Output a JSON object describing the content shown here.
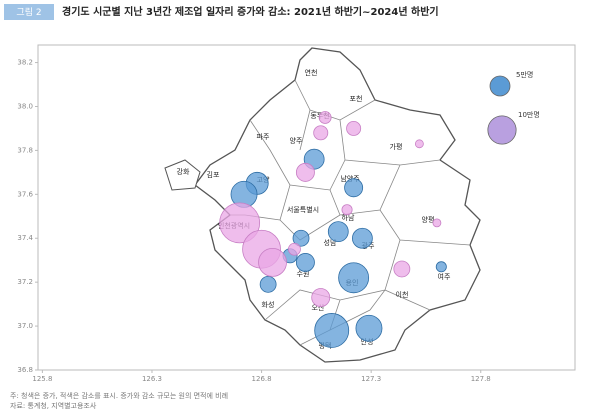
{
  "header": {
    "figure_label": "그림 2",
    "title": "경기도 시군별 지난 3년간 제조업 일자리 증가와 감소: 2021년 하반기~2024년 하반기"
  },
  "chart_data": {
    "type": "bubble",
    "xlim": [
      125.78,
      128.23
    ],
    "ylim": [
      36.8,
      38.28
    ],
    "xticks": [
      125.8,
      126.3,
      126.8,
      127.3,
      127.8
    ],
    "yticks": [
      36.8,
      {
        "value": 37,
        "label": "37.0"
      },
      37.2,
      37.4,
      37.6,
      37.8,
      {
        "value": 38,
        "label": "38.0"
      },
      38.2
    ],
    "series": [
      {
        "color": "#5b9bd5",
        "x": [
          126.78,
          126.72,
          127.04,
          127.22,
          127.15,
          127.26,
          127.22,
          126.98,
          126.93,
          127.0,
          126.83,
          127.12,
          127.29,
          127.62
        ],
        "y": [
          37.65,
          37.6,
          37.76,
          37.63,
          37.43,
          37.4,
          37.22,
          37.4,
          37.32,
          37.29,
          37.19,
          36.98,
          36.99,
          37.27
        ],
        "sizes": [
          6.1,
          8.5,
          5,
          4.1,
          5,
          5,
          11.3,
          3.2,
          2.5,
          4.1,
          3.2,
          14.5,
          8.5,
          1.3
        ]
      },
      {
        "color": "#e9a7e6",
        "x": [
          127.07,
          127.09,
          127.22,
          127.19,
          127.44,
          127.6,
          127.52,
          126.7,
          126.8,
          126.85,
          127.0,
          126.95,
          127.07
        ],
        "y": [
          37.88,
          37.95,
          37.9,
          37.53,
          37.26,
          37.47,
          37.83,
          37.47,
          37.35,
          37.29,
          37.7,
          37.35,
          37.13
        ],
        "sizes": [
          2.5,
          1.8,
          2.5,
          1.3,
          3.2,
          0.8,
          0.8,
          20,
          18,
          9.8,
          4.1,
          1.8,
          4.1
        ]
      }
    ],
    "legend": [
      {
        "label": "5만명",
        "size": 5,
        "color": "#5b9bd5"
      },
      {
        "label": "10만명",
        "size": 10,
        "color": "#b9a0e0"
      }
    ],
    "region_labels": [
      "연천",
      "포천",
      "동두천",
      "양주",
      "파주",
      "가평",
      "강화",
      "김포",
      "고양",
      "남양주",
      "서울특별시",
      "인천광역시",
      "하남",
      "성남",
      "광주",
      "양평",
      "수원",
      "용인",
      "이천",
      "여주",
      "화성",
      "오산",
      "평택",
      "안성"
    ]
  },
  "notes": [
    "주: 청색은 증가, 적색은 감소를 표시. 증가와 감소 규모는 원의 면적에 비례",
    "자료: 통계청, 지역별고용조사"
  ]
}
